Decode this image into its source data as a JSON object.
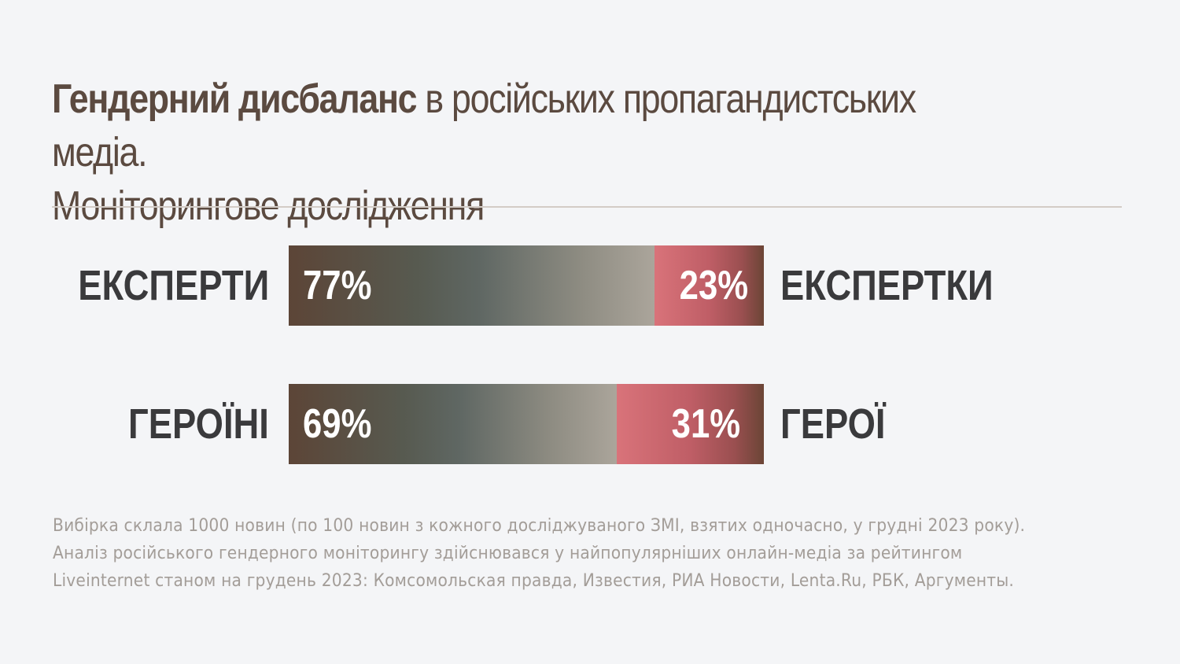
{
  "title": {
    "bold": "Гендерний дисбаланс",
    "rest": " в російських пропагандистських медіа.",
    "line2": "Моніторингове дослідження"
  },
  "chart_data": {
    "type": "bar",
    "stacked": true,
    "orientation": "horizontal",
    "rows": [
      {
        "left_label": "ЕКСПЕРТИ",
        "right_label": "ЕКСПЕРТКИ",
        "left_value": 77,
        "right_value": 23,
        "left_text": "77%",
        "right_text": "23%"
      },
      {
        "left_label": "ГЕРОЇНІ",
        "right_label": "ГЕРОЇ",
        "left_value": 69,
        "right_value": 31,
        "left_text": "69%",
        "right_text": "31%"
      }
    ],
    "colors": {
      "left_start": "#5c4537",
      "left_end": "#aba59b",
      "right_start": "#d9737a",
      "right_end": "#6b4536"
    }
  },
  "footnote": {
    "line1": "Вибірка склала 1000 новин (по 100 новин з кожного досліджуваного ЗМІ, взятих одночасно, у грудні 2023 року).",
    "line2": "Аналіз російського гендерного моніторингу здійснювався у найпопулярніших онлайн-медіа за рейтингом",
    "line3": "Liveinternet станом на грудень 2023: Комсомольская правда, Известия, РИА Новости, Lenta.Ru, РБК, Аргументы."
  }
}
